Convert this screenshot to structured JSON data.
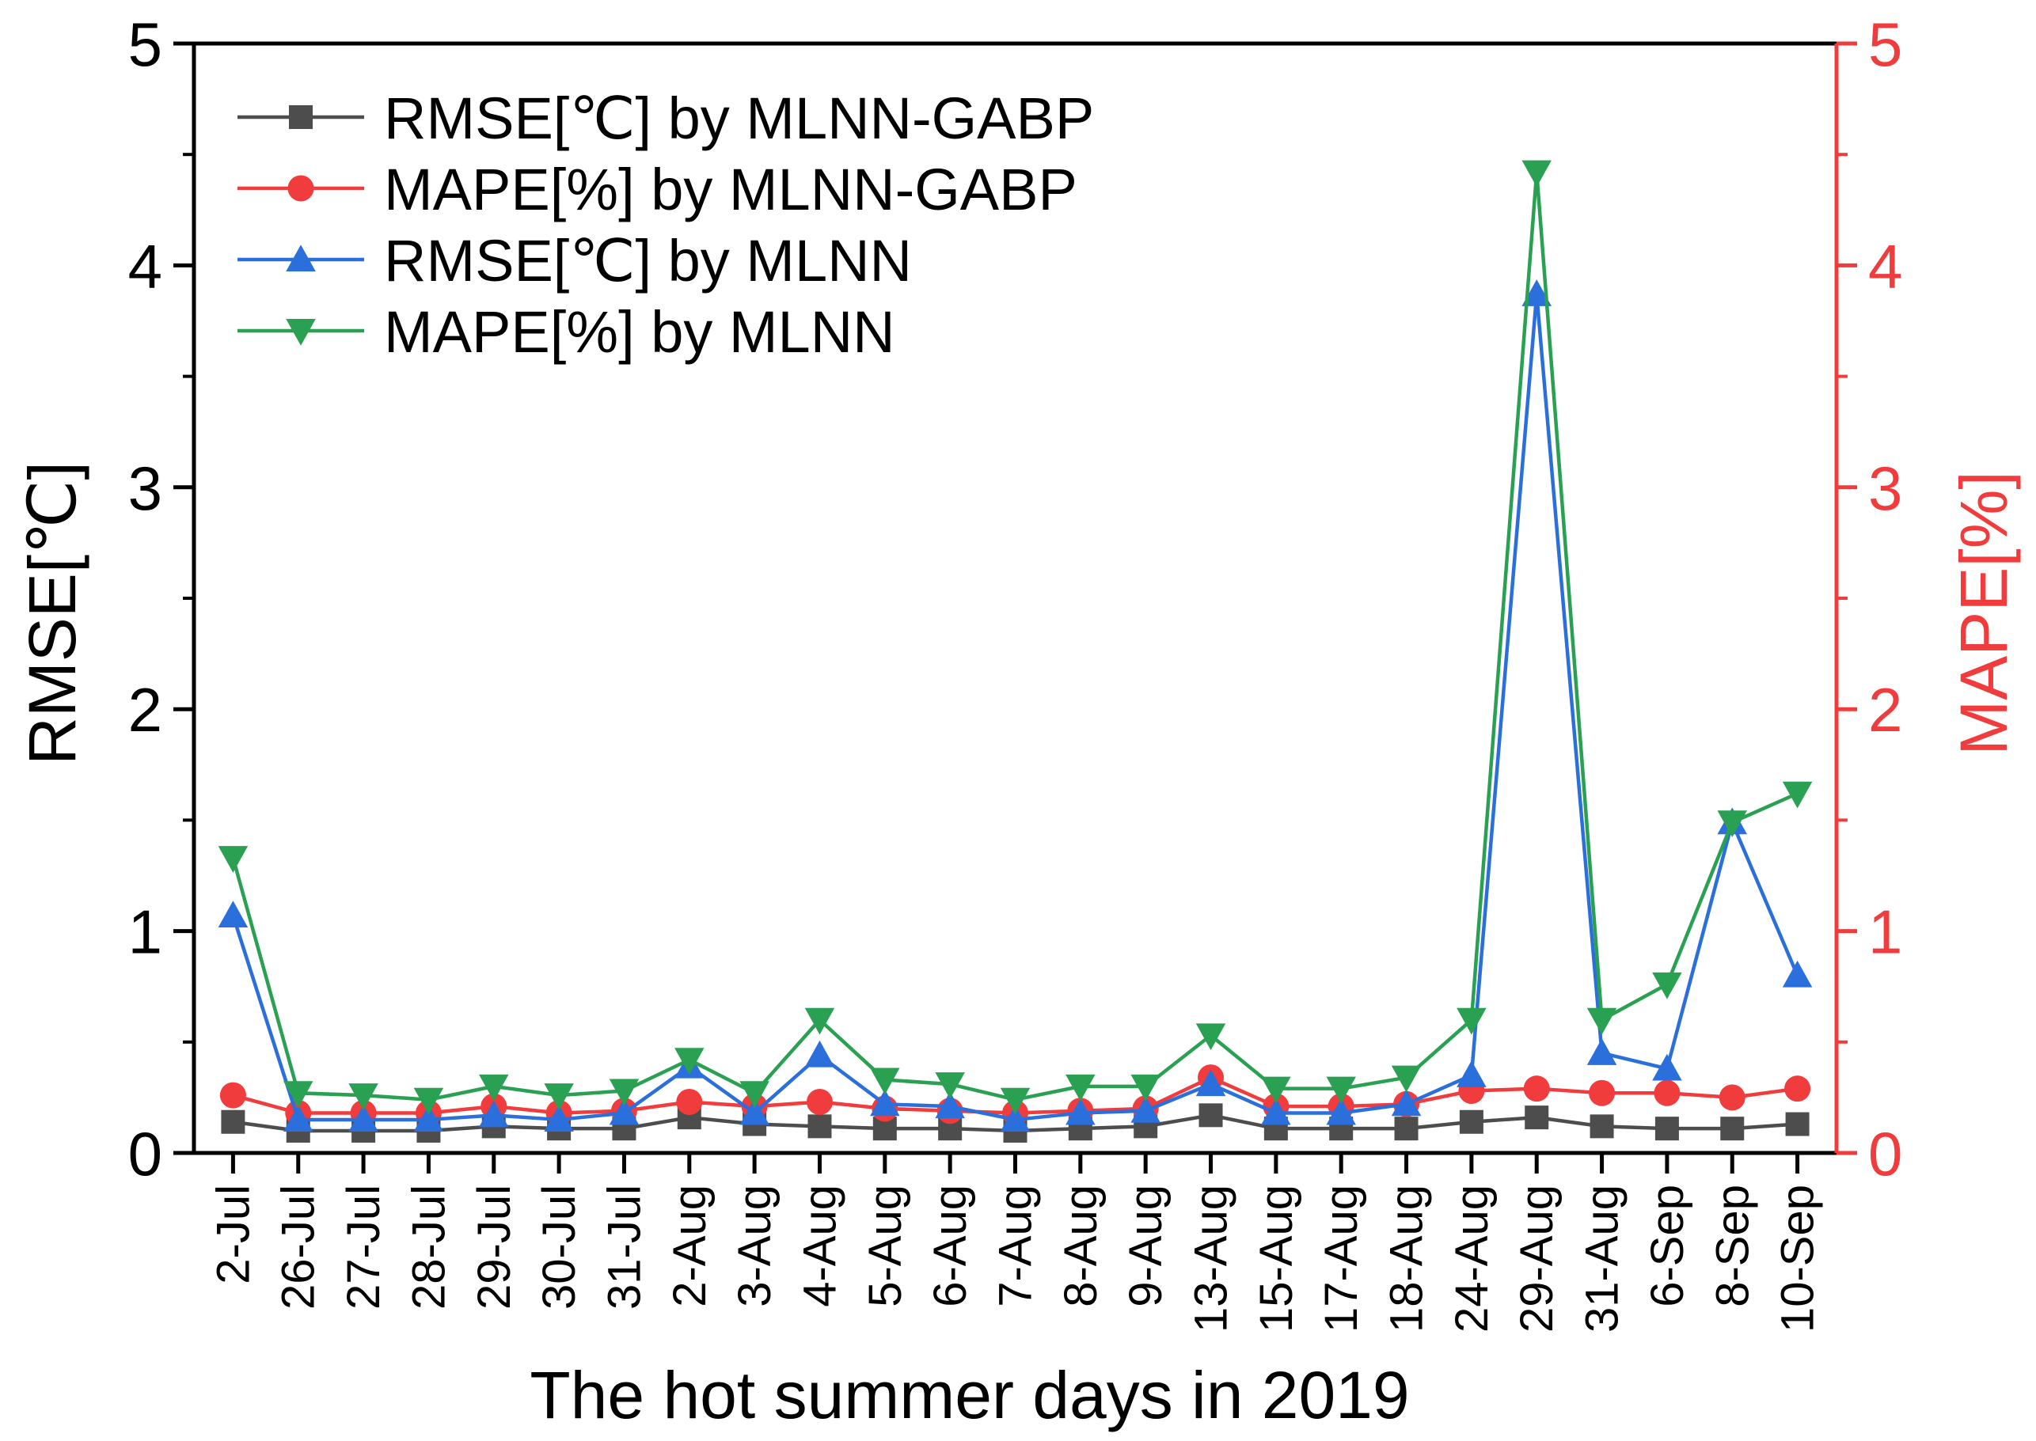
{
  "chart_data": {
    "type": "line",
    "xlabel": "The hot summer days in 2019",
    "ylabel_left": "RMSE[℃]",
    "ylabel_right": "MAPE[%]",
    "ylim_left": [
      0,
      5
    ],
    "ylim_right": [
      0,
      5
    ],
    "yticks_left": [
      "0",
      "1",
      "2",
      "3",
      "4",
      "5"
    ],
    "yticks_right": [
      "0",
      "1",
      "2",
      "3",
      "4",
      "5"
    ],
    "grid": false,
    "legend_position": "top-left",
    "categories": [
      "2-Jul",
      "26-Jul",
      "27-Jul",
      "28-Jul",
      "29-Jul",
      "30-Jul",
      "31-Jul",
      "2-Aug",
      "3-Aug",
      "4-Aug",
      "5-Aug",
      "6-Aug",
      "7-Aug",
      "8-Aug",
      "9-Aug",
      "13-Aug",
      "15-Aug",
      "17-Aug",
      "18-Aug",
      "24-Aug",
      "29-Aug",
      "31-Aug",
      "6-Sep",
      "8-Sep",
      "10-Sep"
    ],
    "series": [
      {
        "name": "RMSE[℃] by MLNN-GABP",
        "axis": "left",
        "color": "#4d4d4d",
        "marker": "square",
        "values": [
          0.14,
          0.1,
          0.1,
          0.1,
          0.12,
          0.11,
          0.11,
          0.16,
          0.13,
          0.12,
          0.11,
          0.11,
          0.1,
          0.11,
          0.12,
          0.17,
          0.11,
          0.11,
          0.11,
          0.14,
          0.16,
          0.12,
          0.11,
          0.11,
          0.13
        ]
      },
      {
        "name": "MAPE[%] by MLNN-GABP",
        "axis": "right",
        "color": "#f03c3c",
        "marker": "circle",
        "values": [
          0.26,
          0.18,
          0.18,
          0.18,
          0.21,
          0.18,
          0.19,
          0.23,
          0.21,
          0.23,
          0.2,
          0.19,
          0.18,
          0.19,
          0.2,
          0.34,
          0.21,
          0.21,
          0.22,
          0.28,
          0.29,
          0.27,
          0.27,
          0.25,
          0.29
        ]
      },
      {
        "name": "RMSE[℃] by MLNN",
        "axis": "left",
        "color": "#2a6fdb",
        "marker": "triangle-up",
        "values": [
          1.07,
          0.15,
          0.15,
          0.15,
          0.17,
          0.15,
          0.18,
          0.39,
          0.18,
          0.44,
          0.22,
          0.21,
          0.15,
          0.18,
          0.19,
          0.31,
          0.18,
          0.18,
          0.22,
          0.35,
          3.87,
          0.45,
          0.38,
          1.49,
          0.8
        ]
      },
      {
        "name": "MAPE[%] by MLNN",
        "axis": "right",
        "color": "#2aa052",
        "marker": "triangle-down",
        "values": [
          1.33,
          0.27,
          0.26,
          0.24,
          0.3,
          0.26,
          0.28,
          0.42,
          0.27,
          0.6,
          0.33,
          0.31,
          0.24,
          0.3,
          0.3,
          0.53,
          0.29,
          0.29,
          0.34,
          0.6,
          4.42,
          0.6,
          0.76,
          1.49,
          1.62
        ]
      }
    ]
  }
}
